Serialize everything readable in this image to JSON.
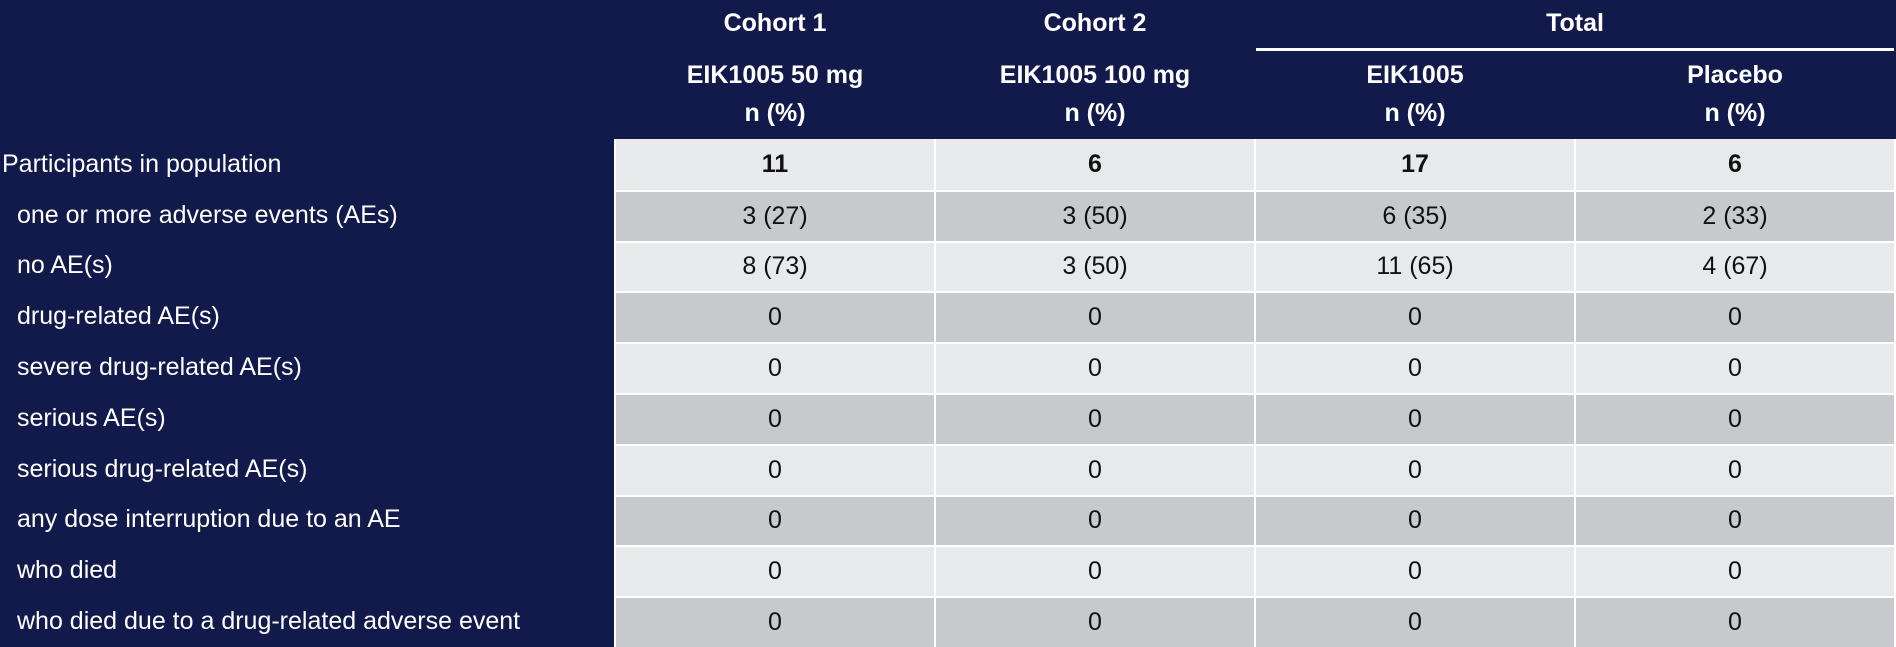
{
  "header": {
    "groups": [
      {
        "label": "Cohort 1",
        "span": 1
      },
      {
        "label": "Cohort 2",
        "span": 1
      },
      {
        "label": "Total",
        "span": 2
      }
    ],
    "columns": [
      {
        "name": "EIK1005 50 mg",
        "unit": "n (%)"
      },
      {
        "name": "EIK1005 100 mg",
        "unit": "n (%)"
      },
      {
        "name": "EIK1005",
        "unit": "n (%)"
      },
      {
        "name": "Placebo",
        "unit": "n (%)"
      }
    ]
  },
  "table": {
    "rows": [
      {
        "label": "Participants in population",
        "values": [
          "11",
          "6",
          "17",
          "6"
        ]
      },
      {
        "label": "one or more adverse events (AEs)",
        "values": [
          "3 (27)",
          "3 (50)",
          "6 (35)",
          "2 (33)"
        ]
      },
      {
        "label": "no AE(s)",
        "values": [
          "8 (73)",
          "3 (50)",
          "11 (65)",
          "4 (67)"
        ]
      },
      {
        "label": "drug-related AE(s)",
        "values": [
          "0",
          "0",
          "0",
          "0"
        ]
      },
      {
        "label": "severe drug-related AE(s)",
        "values": [
          "0",
          "0",
          "0",
          "0"
        ]
      },
      {
        "label": "serious AE(s)",
        "values": [
          "0",
          "0",
          "0",
          "0"
        ]
      },
      {
        "label": "serious drug-related AE(s)",
        "values": [
          "0",
          "0",
          "0",
          "0"
        ]
      },
      {
        "label": "any dose interruption due to an AE",
        "values": [
          "0",
          "0",
          "0",
          "0"
        ]
      },
      {
        "label": "who died",
        "values": [
          "0",
          "0",
          "0",
          "0"
        ]
      },
      {
        "label": "who died due to a drug-related adverse event",
        "values": [
          "0",
          "0",
          "0",
          "0"
        ]
      }
    ]
  }
}
